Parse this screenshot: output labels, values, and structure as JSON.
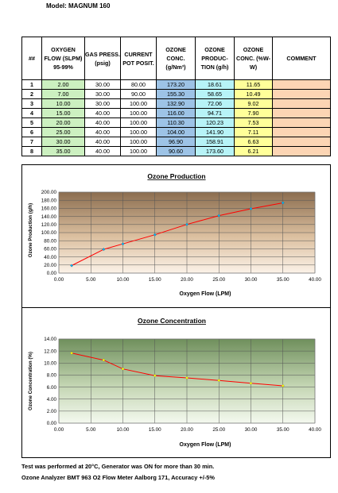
{
  "model": "Model:  MAGNUM 160",
  "table": {
    "headers": [
      "##",
      "OXYGEN FLOW (SLPM) 95-99%",
      "GAS PRESS. (psig)",
      "CURRENT POT POSIT.",
      "OZONE CONC. (g/Nm³)",
      "OZONE PRODUC-TION (g/h)",
      "OZONE CONC. (%W-W)",
      "COMMENT"
    ],
    "rows": [
      [
        "1",
        "2.00",
        "30.00",
        "80.00",
        "173.20",
        "18.61",
        "11.65",
        ""
      ],
      [
        "2",
        "7.00",
        "30.00",
        "90.00",
        "155.30",
        "58.65",
        "10.49",
        ""
      ],
      [
        "3",
        "10.00",
        "30.00",
        "100.00",
        "132.90",
        "72.06",
        "9.02",
        ""
      ],
      [
        "4",
        "15.00",
        "40.00",
        "100.00",
        "116.00",
        "94.71",
        "7.90",
        ""
      ],
      [
        "5",
        "20.00",
        "40.00",
        "100.00",
        "110.30",
        "120.23",
        "7.53",
        ""
      ],
      [
        "6",
        "25.00",
        "40.00",
        "100.00",
        "104.00",
        "141.90",
        "7.11",
        ""
      ],
      [
        "7",
        "30.00",
        "40.00",
        "100.00",
        "96.90",
        "158.91",
        "6.63",
        ""
      ],
      [
        "8",
        "35.00",
        "40.00",
        "100.00",
        "90.60",
        "173.60",
        "6.21",
        ""
      ]
    ]
  },
  "chart_data": [
    {
      "type": "line",
      "title": "Ozone Production",
      "xlabel": "Oxygen Flow (LPM)",
      "ylabel": "Ozone Production (g/h)",
      "x": [
        2,
        7,
        10,
        15,
        20,
        25,
        30,
        35
      ],
      "y": [
        18.61,
        58.65,
        72.06,
        94.71,
        120.23,
        141.9,
        158.91,
        173.6
      ],
      "xlim": [
        0,
        40
      ],
      "ylim": [
        0,
        200
      ],
      "xticks": [
        "0.00",
        "5.00",
        "10.00",
        "15.00",
        "20.00",
        "25.00",
        "30.00",
        "35.00",
        "40.00"
      ],
      "yticks": [
        "0.00",
        "20.00",
        "40.00",
        "60.00",
        "80.00",
        "100.00",
        "120.00",
        "140.00",
        "160.00",
        "180.00",
        "200.00"
      ],
      "grid": true,
      "line_color": "#ff0000",
      "marker_color": "#00b0f0",
      "background": "gradient brown"
    },
    {
      "type": "line",
      "title": "Ozone Concentration",
      "xlabel": "Oxygen Flow (LPM)",
      "ylabel": "Ozone Concentration (%)",
      "x": [
        2,
        7,
        10,
        15,
        20,
        25,
        30,
        35
      ],
      "y": [
        11.65,
        10.49,
        9.02,
        7.9,
        7.53,
        7.11,
        6.63,
        6.21
      ],
      "xlim": [
        0,
        40
      ],
      "ylim": [
        0,
        14
      ],
      "xticks": [
        "0.00",
        "5.00",
        "10.00",
        "15.00",
        "20.00",
        "25.00",
        "30.00",
        "35.00",
        "40.00"
      ],
      "yticks": [
        "0.00",
        "2.00",
        "4.00",
        "6.00",
        "8.00",
        "10.00",
        "12.00",
        "14.00"
      ],
      "grid": true,
      "line_color": "#ff0000",
      "marker_color": "#ffff00",
      "background": "gradient green"
    }
  ],
  "footer": {
    "line1": "Test was performed at 20°C, Generator was ON for more than 30 min.",
    "line2": "Ozone Analyzer BMT 963 O2 Flow Meter Aalborg 171, Accuracy +/-5%"
  }
}
